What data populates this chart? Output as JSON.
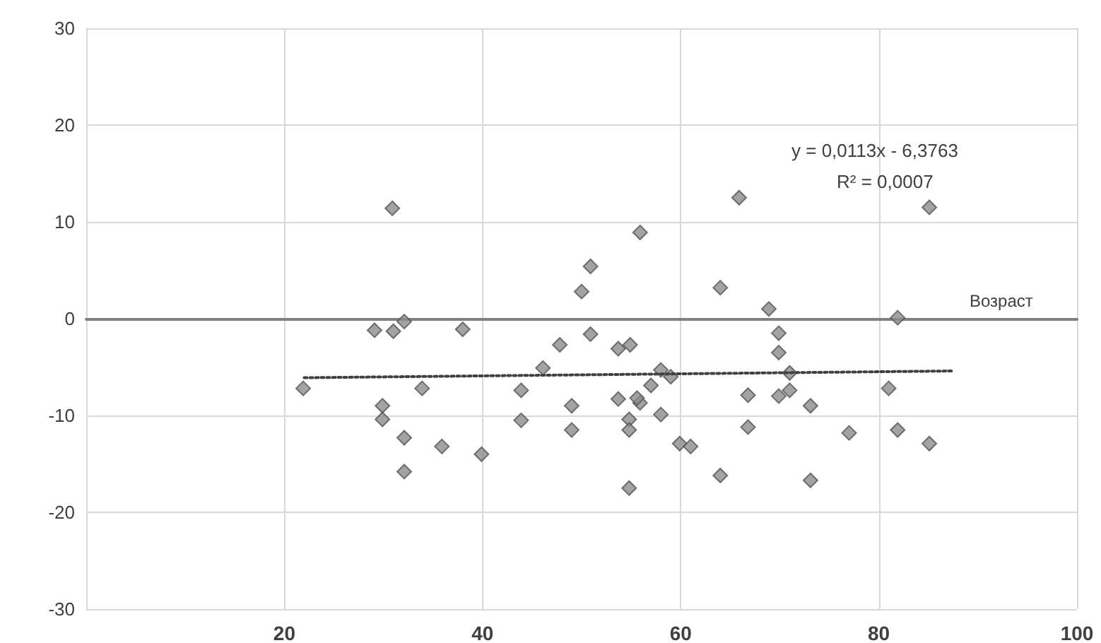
{
  "chart_data": {
    "type": "scatter",
    "xlabel": "Возраст",
    "annotations": [
      "y = 0,0113x - 6,3763",
      "R² = 0,0007"
    ],
    "xlim": [
      0,
      100
    ],
    "xticks": [
      {
        "value": 0,
        "label": null
      },
      20,
      40,
      60,
      80,
      100
    ],
    "ylim": [
      -30,
      30
    ],
    "yticks": [
      -30,
      -20,
      -10,
      0,
      10,
      20,
      30
    ],
    "grid": true,
    "marker": "diamond",
    "series": [
      {
        "color": "#8c8c8c",
        "x": [
          30.9,
          55.9,
          50.9,
          50.0,
          29.1,
          31.0,
          32.1,
          38.0,
          50.9,
          47.8,
          53.7,
          54.9,
          46.1,
          21.9,
          33.9,
          43.9,
          29.9,
          29.9,
          43.9,
          49.0,
          49.0,
          32.1,
          35.9,
          39.9,
          32.1,
          53.7,
          55.9,
          55.6,
          57.0,
          58.0,
          59.0,
          58.0,
          54.8,
          54.8,
          54.8,
          59.9,
          61.0,
          65.9,
          85.1,
          64.0,
          68.9,
          81.9,
          69.9,
          69.9,
          71.0,
          66.8,
          69.9,
          71.0,
          73.1,
          81.0,
          66.8,
          77.0,
          81.9,
          85.1,
          64.0,
          73.1
        ],
        "values": [
          11.4,
          8.9,
          5.4,
          2.8,
          -1.2,
          -1.3,
          -0.3,
          -1.1,
          -1.6,
          -2.7,
          -3.1,
          -2.7,
          -5.1,
          -7.2,
          -7.2,
          -7.4,
          -9.0,
          -10.4,
          -10.5,
          -9.0,
          -11.5,
          -12.3,
          -13.2,
          -14.0,
          -15.8,
          -8.3,
          -8.7,
          -8.2,
          -6.9,
          -5.3,
          -6.0,
          -9.9,
          -10.4,
          -11.5,
          -17.5,
          -12.9,
          -13.2,
          12.5,
          11.5,
          3.2,
          1.0,
          0.1,
          -1.5,
          -3.5,
          -5.6,
          -7.9,
          -8.0,
          -7.4,
          -9.0,
          -7.2,
          -11.2,
          -11.8,
          -11.5,
          -12.9,
          -16.2,
          -16.7
        ]
      },
      {
        "type": "line",
        "color": "#404040",
        "line_style": "dotted",
        "marker": "none",
        "x": [
          22,
          87.5
        ],
        "values": [
          -6.1,
          -5.4
        ]
      }
    ]
  }
}
